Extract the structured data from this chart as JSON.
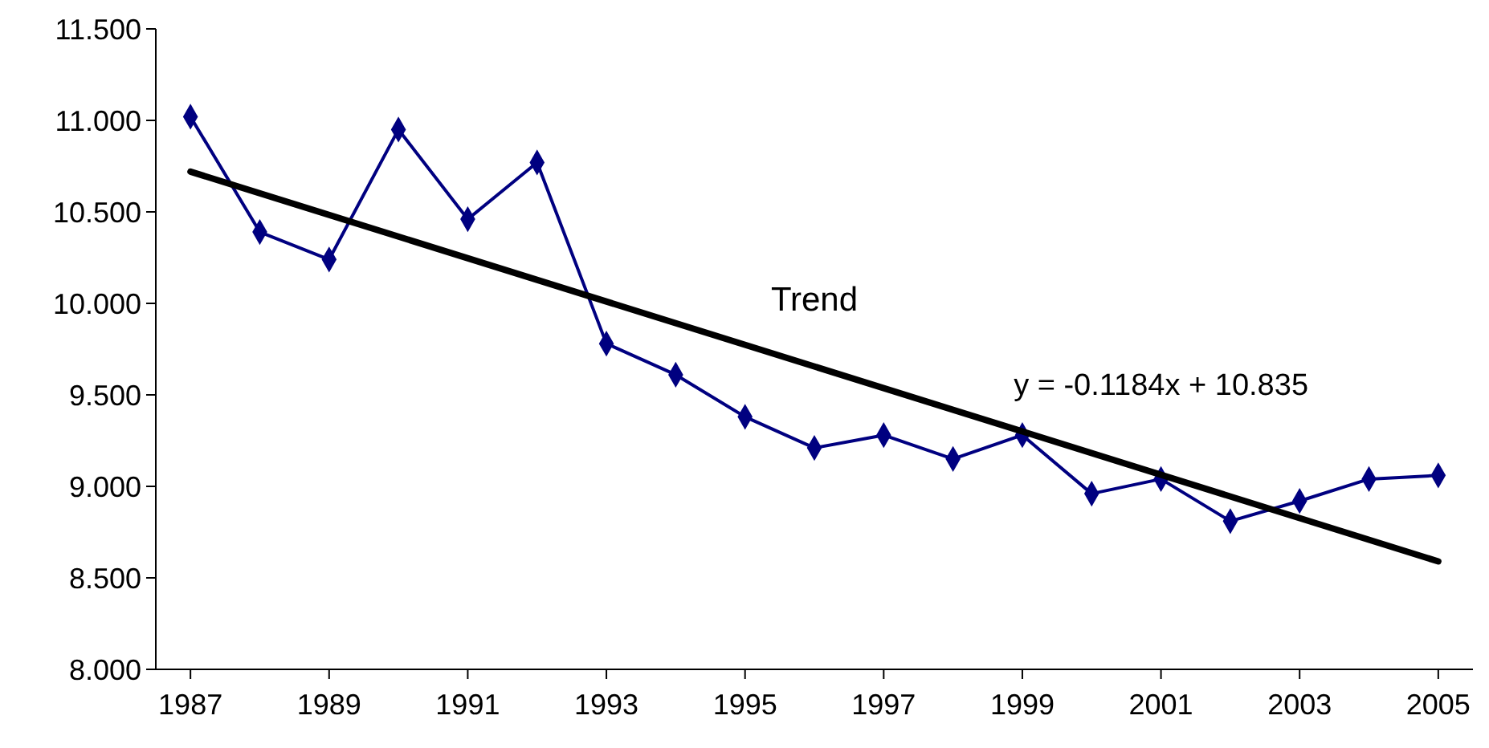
{
  "chart_data": {
    "type": "line",
    "x": [
      1987,
      1988,
      1989,
      1990,
      1991,
      1992,
      1993,
      1994,
      1995,
      1996,
      1997,
      1998,
      1999,
      2000,
      2001,
      2002,
      2003,
      2004,
      2005
    ],
    "series": [
      {
        "color": "#000080",
        "marker": "diamond",
        "values": [
          11.02,
          10.39,
          10.24,
          10.95,
          10.46,
          10.77,
          9.78,
          9.61,
          9.38,
          9.21,
          9.28,
          9.15,
          9.28,
          8.96,
          9.04,
          8.81,
          8.92,
          9.04,
          9.06
        ]
      },
      {
        "name": "Trend",
        "color": "#000000",
        "marker": "none",
        "x": [
          1987,
          2005
        ],
        "values": [
          10.72,
          8.59
        ]
      }
    ],
    "xlim": [
      1986.5,
      2005.5
    ],
    "xticks": [
      1987,
      1989,
      1991,
      1993,
      1995,
      1997,
      1999,
      2001,
      2003,
      2005
    ],
    "ylim": [
      8,
      11.5
    ],
    "yticks": [
      {
        "value": 8,
        "label": "8.000"
      },
      {
        "value": 8.5,
        "label": "8.500"
      },
      {
        "value": 9,
        "label": "9.000"
      },
      {
        "value": 9.5,
        "label": "9.500"
      },
      {
        "value": 10,
        "label": "10.000"
      },
      {
        "value": 10.5,
        "label": "10.500"
      },
      {
        "value": 11,
        "label": "11.000"
      },
      {
        "value": 11.5,
        "label": "11.500"
      }
    ],
    "annotations": [
      "y = -0.1184x + 10.835"
    ],
    "grid": false
  }
}
